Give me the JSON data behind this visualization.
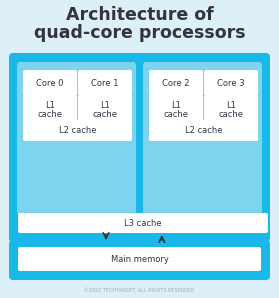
{
  "title_line1": "Architecture of",
  "title_line2": "quad-core processors",
  "bg_color": "#ddf0f7",
  "outer_box_color": "#1ab8e8",
  "mid_box_color": "#7dd4ef",
  "inner_box_color": "#ffffff",
  "text_color": "#333344",
  "footer_text": "©2022 TECHTARGET. ALL RIGHTS RESERVED",
  "cores": [
    "Core 0",
    "Core 1",
    "Core 2",
    "Core 3"
  ],
  "l1_label": "L1\ncache",
  "l2_label": "L2 cache",
  "l3_label": "L3 cache",
  "mm_label": "Main memory",
  "title_fontsize": 12.5,
  "label_fontsize": 6.0,
  "footer_fontsize": 3.5,
  "fig_w": 2.79,
  "fig_h": 2.98,
  "dpi": 100
}
